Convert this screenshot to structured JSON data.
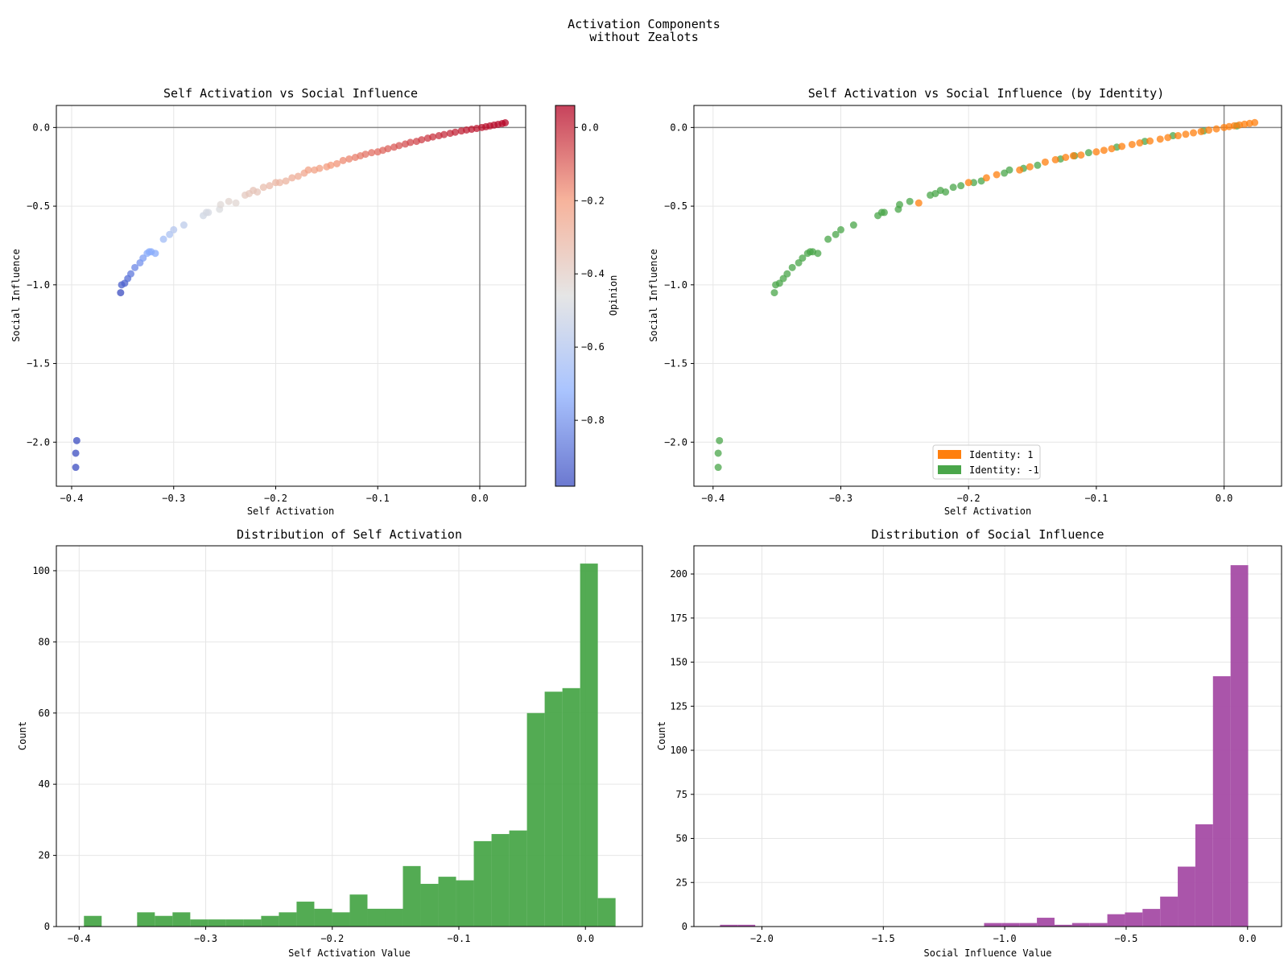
{
  "figure": {
    "title_line1": "Activation Components",
    "title_line2": "without Zealots"
  },
  "colors": {
    "identity_pos": "#ff7f0e",
    "identity_neg": "#4aa64a",
    "hist_self": "#4aa64a",
    "hist_social": "#a54ca5",
    "cmap_low": "#3b4cc0",
    "cmap_mid": "#dddddd",
    "cmap_high": "#b40426"
  },
  "chart_data": [
    {
      "type": "scatter",
      "title": "Self Activation vs Social Influence",
      "xlabel": "Self Activation",
      "ylabel": "Social Influence",
      "xlim": [
        -0.415,
        0.045
      ],
      "ylim": [
        -2.28,
        0.14
      ],
      "xticks": [
        -0.4,
        -0.3,
        -0.2,
        -0.1,
        0.0
      ],
      "yticks": [
        -2.0,
        -1.5,
        -1.0,
        -0.5,
        0.0
      ],
      "grid": true,
      "reference_lines": {
        "x": 0,
        "y": 0
      },
      "colorbar": {
        "label": "Opinion",
        "range": [
          -0.98,
          0.06
        ],
        "ticks": [
          -0.8,
          -0.6,
          -0.4,
          -0.2,
          0.0
        ],
        "colormap": "coolwarm"
      },
      "points": {
        "x": [
          -0.395,
          -0.396,
          -0.396,
          -0.352,
          -0.351,
          -0.348,
          -0.345,
          -0.342,
          -0.338,
          -0.333,
          -0.33,
          -0.326,
          -0.324,
          -0.322,
          -0.318,
          -0.31,
          -0.304,
          -0.3,
          -0.29,
          -0.271,
          -0.268,
          -0.266,
          -0.255,
          -0.254,
          -0.246,
          -0.239,
          -0.23,
          -0.226,
          -0.222,
          -0.218,
          -0.212,
          -0.206,
          -0.2,
          -0.196,
          -0.19,
          -0.184,
          -0.178,
          -0.172,
          -0.168,
          -0.162,
          -0.157,
          -0.15,
          -0.146,
          -0.14,
          -0.134,
          -0.128,
          -0.122,
          -0.117,
          -0.112,
          -0.106,
          -0.1,
          -0.095,
          -0.09,
          -0.084,
          -0.079,
          -0.073,
          -0.068,
          -0.062,
          -0.057,
          -0.051,
          -0.046,
          -0.04,
          -0.035,
          -0.029,
          -0.024,
          -0.018,
          -0.013,
          -0.008,
          -0.003,
          0.002,
          0.006,
          0.01,
          0.014,
          0.018,
          0.022,
          0.025
        ],
        "y": [
          -1.99,
          -2.07,
          -2.16,
          -1.05,
          -1.0,
          -0.99,
          -0.96,
          -0.93,
          -0.89,
          -0.86,
          -0.83,
          -0.8,
          -0.79,
          -0.79,
          -0.8,
          -0.71,
          -0.68,
          -0.65,
          -0.62,
          -0.56,
          -0.54,
          -0.54,
          -0.52,
          -0.49,
          -0.47,
          -0.48,
          -0.43,
          -0.42,
          -0.4,
          -0.41,
          -0.38,
          -0.37,
          -0.35,
          -0.35,
          -0.34,
          -0.32,
          -0.31,
          -0.29,
          -0.27,
          -0.27,
          -0.26,
          -0.25,
          -0.24,
          -0.23,
          -0.21,
          -0.2,
          -0.19,
          -0.18,
          -0.17,
          -0.16,
          -0.155,
          -0.145,
          -0.135,
          -0.125,
          -0.115,
          -0.105,
          -0.095,
          -0.088,
          -0.078,
          -0.068,
          -0.06,
          -0.052,
          -0.045,
          -0.037,
          -0.03,
          -0.022,
          -0.016,
          -0.011,
          -0.006,
          0.0,
          0.005,
          0.01,
          0.015,
          0.02,
          0.025,
          0.03
        ]
      }
    },
    {
      "type": "scatter",
      "title": "Self Activation vs Social Influence (by Identity)",
      "xlabel": "Self Activation",
      "ylabel": "Social Influence",
      "xlim": [
        -0.415,
        0.045
      ],
      "ylim": [
        -2.28,
        0.14
      ],
      "xticks": [
        -0.4,
        -0.3,
        -0.2,
        -0.1,
        0.0
      ],
      "yticks": [
        -2.0,
        -1.5,
        -1.0,
        -0.5,
        0.0
      ],
      "grid": true,
      "reference_lines": {
        "x": 0,
        "y": 0
      },
      "legend": {
        "location": "lower center",
        "entries": [
          "Identity: 1",
          "Identity: -1"
        ]
      },
      "series": [
        {
          "name": "Identity: 1",
          "x": [
            -0.239,
            -0.2,
            -0.186,
            -0.178,
            -0.16,
            -0.152,
            -0.14,
            -0.132,
            -0.124,
            -0.118,
            -0.112,
            -0.1,
            -0.094,
            -0.088,
            -0.08,
            -0.072,
            -0.066,
            -0.058,
            -0.05,
            -0.044,
            -0.036,
            -0.03,
            -0.024,
            -0.018,
            -0.012,
            -0.006,
            0.0,
            0.004,
            0.008,
            0.012,
            0.016,
            0.02,
            0.024
          ],
          "y": [
            -0.48,
            -0.35,
            -0.32,
            -0.3,
            -0.27,
            -0.25,
            -0.22,
            -0.205,
            -0.19,
            -0.18,
            -0.175,
            -0.155,
            -0.145,
            -0.135,
            -0.12,
            -0.108,
            -0.098,
            -0.086,
            -0.074,
            -0.064,
            -0.052,
            -0.043,
            -0.034,
            -0.026,
            -0.017,
            -0.009,
            0.0,
            0.006,
            0.011,
            0.016,
            0.021,
            0.026,
            0.031
          ]
        },
        {
          "name": "Identity: -1",
          "x": [
            -0.395,
            -0.396,
            -0.396,
            -0.352,
            -0.351,
            -0.348,
            -0.345,
            -0.342,
            -0.338,
            -0.333,
            -0.33,
            -0.326,
            -0.324,
            -0.322,
            -0.318,
            -0.31,
            -0.304,
            -0.3,
            -0.29,
            -0.271,
            -0.268,
            -0.266,
            -0.255,
            -0.254,
            -0.246,
            -0.23,
            -0.226,
            -0.222,
            -0.218,
            -0.212,
            -0.206,
            -0.196,
            -0.19,
            -0.172,
            -0.168,
            -0.157,
            -0.146,
            -0.128,
            -0.117,
            -0.106,
            -0.084,
            -0.062,
            -0.04,
            -0.016,
            0.01
          ],
          "y": [
            -1.99,
            -2.07,
            -2.16,
            -1.05,
            -1.0,
            -0.99,
            -0.96,
            -0.93,
            -0.89,
            -0.86,
            -0.83,
            -0.8,
            -0.79,
            -0.79,
            -0.8,
            -0.71,
            -0.68,
            -0.65,
            -0.62,
            -0.56,
            -0.54,
            -0.54,
            -0.52,
            -0.49,
            -0.47,
            -0.43,
            -0.42,
            -0.4,
            -0.41,
            -0.38,
            -0.37,
            -0.35,
            -0.34,
            -0.29,
            -0.27,
            -0.26,
            -0.24,
            -0.2,
            -0.18,
            -0.16,
            -0.125,
            -0.088,
            -0.052,
            -0.022,
            0.01
          ]
        }
      ]
    },
    {
      "type": "bar",
      "histogram": true,
      "title": "Distribution of Self Activation",
      "xlabel": "Self Activation Value",
      "ylabel": "Count",
      "xlim": [
        -0.418,
        0.045
      ],
      "ylim": [
        0,
        107
      ],
      "xticks": [
        -0.4,
        -0.3,
        -0.2,
        -0.1,
        0.0
      ],
      "yticks": [
        0,
        20,
        40,
        60,
        80,
        100
      ],
      "grid": true,
      "bin_edges": [
        -0.3962,
        -0.3822,
        -0.3682,
        -0.3542,
        -0.3402,
        -0.3262,
        -0.3122,
        -0.2982,
        -0.2842,
        -0.2702,
        -0.2562,
        -0.2422,
        -0.2282,
        -0.2142,
        -0.2002,
        -0.1862,
        -0.1722,
        -0.1582,
        -0.1442,
        -0.1302,
        -0.1162,
        -0.1022,
        -0.0882,
        -0.0742,
        -0.0602,
        -0.0462,
        -0.0322,
        -0.0182,
        -0.0042,
        0.0098,
        0.0238
      ],
      "values": [
        3,
        0,
        0,
        4,
        3,
        4,
        2,
        2,
        2,
        2,
        3,
        4,
        7,
        5,
        4,
        9,
        5,
        5,
        17,
        12,
        14,
        13,
        24,
        26,
        27,
        60,
        66,
        67,
        102,
        8
      ]
    },
    {
      "type": "bar",
      "histogram": true,
      "title": "Distribution of Social Influence",
      "xlabel": "Social Influence Value",
      "ylabel": "Count",
      "xlim": [
        -2.28,
        0.14
      ],
      "ylim": [
        0,
        216
      ],
      "xticks": [
        -2.0,
        -1.5,
        -1.0,
        -0.5,
        0.0
      ],
      "yticks": [
        0,
        25,
        50,
        75,
        100,
        125,
        150,
        175,
        200
      ],
      "grid": true,
      "bin_edges": [
        -2.1725,
        -2.1,
        -2.0275,
        -1.955,
        -1.8825,
        -1.81,
        -1.7375,
        -1.665,
        -1.5925,
        -1.52,
        -1.4475,
        -1.375,
        -1.3025,
        -1.23,
        -1.1575,
        -1.085,
        -1.0125,
        -0.94,
        -0.8675,
        -0.795,
        -0.7225,
        -0.65,
        -0.5775,
        -0.505,
        -0.4325,
        -0.36,
        -0.2875,
        -0.215,
        -0.1425,
        -0.07,
        0.0025
      ],
      "values": [
        1,
        1,
        0,
        0,
        0,
        0,
        0,
        0,
        0,
        0,
        0,
        0,
        0,
        0,
        0,
        2,
        2,
        2,
        5,
        1,
        2,
        2,
        7,
        8,
        10,
        17,
        34,
        58,
        142,
        205
      ]
    }
  ]
}
